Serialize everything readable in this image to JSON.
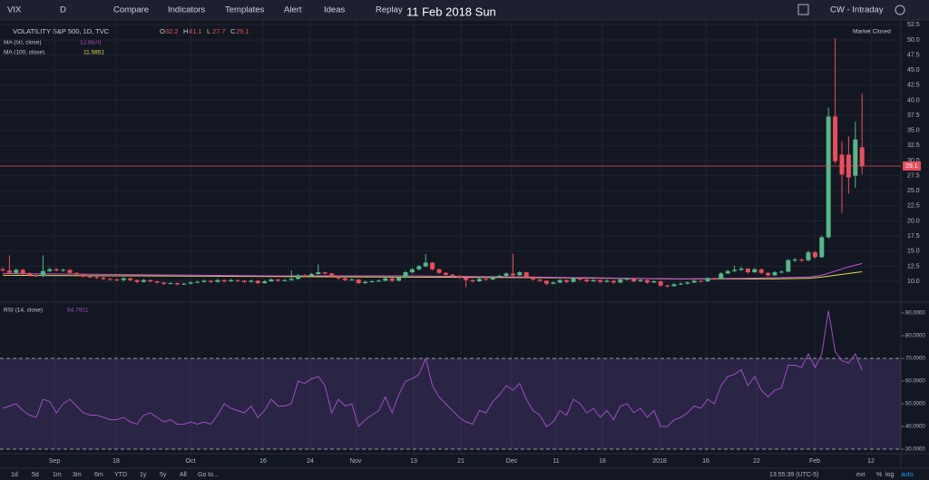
{
  "toolbar": {
    "symbol": "VIX",
    "interval": "D",
    "buttons": [
      "Compare",
      "Indicators",
      "Templates",
      "Alert",
      "Ideas",
      "Replay"
    ],
    "date": "11 Feb 2018 Sun",
    "layout": "CW - Intraday"
  },
  "chart": {
    "type": "candlestick",
    "title": "VOLATILITY S&P 500, 1D, TVC",
    "status": "Market Closed",
    "ohlc": [
      {
        "label": "O",
        "value": "32.2"
      },
      {
        "label": "H",
        "value": "41.1"
      },
      {
        "label": "L",
        "value": "27.7"
      },
      {
        "label": "C",
        "value": "29.1"
      }
    ],
    "ylim": [
      7,
      53
    ],
    "yticks": [
      {
        "value": 10,
        "label": "10.0"
      },
      {
        "value": 12.5,
        "label": "12.5"
      },
      {
        "value": 15,
        "label": "15.0"
      },
      {
        "value": 17.5,
        "label": "17.5"
      },
      {
        "value": 20,
        "label": "20.0"
      },
      {
        "value": 22.5,
        "label": "22.5"
      },
      {
        "value": 25,
        "label": "25.0"
      },
      {
        "value": 27.5,
        "label": "27.5"
      },
      {
        "value": 30,
        "label": "30.0"
      },
      {
        "value": 32.5,
        "label": "32.5"
      },
      {
        "value": 35,
        "label": "35.0"
      },
      {
        "value": 37.5,
        "label": "37.5"
      },
      {
        "value": 40,
        "label": "40.0"
      },
      {
        "value": 42.5,
        "label": "42.5"
      },
      {
        "value": 45,
        "label": "45.0"
      },
      {
        "value": 47.5,
        "label": "47.5"
      },
      {
        "value": 50,
        "label": "50.0"
      },
      {
        "value": 52.5,
        "label": "52.5"
      }
    ],
    "last": {
      "value": 29.1,
      "label": "29.1"
    },
    "colors": {
      "up": "#53b987",
      "down": "#eb4d5c"
    },
    "candles": [
      [
        12.0,
        12.3,
        11.6,
        11.8
      ],
      [
        11.8,
        14.3,
        11.2,
        11.4
      ],
      [
        11.4,
        12.1,
        11.2,
        11.9
      ],
      [
        11.9,
        12.1,
        11.1,
        11.3
      ],
      [
        11.3,
        11.5,
        10.8,
        11.0
      ],
      [
        11.0,
        11.2,
        10.7,
        10.9
      ],
      [
        10.9,
        14.3,
        10.7,
        11.7
      ],
      [
        11.7,
        12.3,
        11.5,
        12.0
      ],
      [
        12.0,
        12.2,
        11.6,
        11.8
      ],
      [
        11.8,
        12.1,
        11.6,
        11.9
      ],
      [
        11.9,
        12.0,
        11.2,
        11.4
      ],
      [
        11.4,
        11.5,
        11.0,
        11.2
      ],
      [
        11.2,
        11.3,
        10.6,
        10.8
      ],
      [
        10.8,
        11.0,
        10.5,
        10.7
      ],
      [
        10.7,
        10.9,
        10.4,
        10.6
      ],
      [
        10.6,
        10.8,
        10.2,
        10.4
      ],
      [
        10.4,
        10.6,
        10.1,
        10.3
      ],
      [
        10.3,
        10.5,
        10.0,
        10.2
      ],
      [
        10.2,
        10.7,
        10.0,
        10.5
      ],
      [
        10.5,
        10.6,
        10.0,
        10.2
      ],
      [
        10.2,
        10.3,
        9.7,
        9.9
      ],
      [
        9.9,
        10.4,
        9.8,
        10.2
      ],
      [
        10.2,
        10.3,
        9.8,
        10.0
      ],
      [
        10.0,
        10.1,
        9.6,
        9.8
      ],
      [
        9.8,
        9.9,
        9.4,
        9.6
      ],
      [
        9.6,
        9.9,
        9.5,
        9.7
      ],
      [
        9.7,
        9.8,
        9.3,
        9.5
      ],
      [
        9.5,
        9.8,
        9.4,
        9.6
      ],
      [
        9.6,
        10.0,
        9.5,
        9.8
      ],
      [
        9.8,
        10.1,
        9.7,
        9.9
      ],
      [
        9.9,
        10.3,
        9.8,
        10.1
      ],
      [
        10.1,
        10.2,
        9.7,
        9.9
      ],
      [
        9.9,
        10.4,
        9.8,
        10.2
      ],
      [
        10.2,
        10.3,
        9.8,
        10.0
      ],
      [
        10.0,
        10.4,
        9.9,
        10.2
      ],
      [
        10.2,
        10.3,
        9.9,
        10.1
      ],
      [
        10.1,
        10.2,
        9.7,
        9.9
      ],
      [
        9.9,
        10.3,
        9.8,
        10.1
      ],
      [
        10.1,
        10.2,
        9.5,
        9.7
      ],
      [
        9.7,
        10.2,
        9.6,
        10.0
      ],
      [
        10.0,
        10.5,
        9.9,
        10.3
      ],
      [
        10.3,
        10.4,
        9.9,
        10.1
      ],
      [
        10.1,
        10.4,
        10.0,
        10.2
      ],
      [
        10.2,
        11.8,
        10.1,
        10.4
      ],
      [
        10.4,
        11.2,
        10.3,
        11.0
      ],
      [
        11.0,
        11.2,
        10.7,
        10.9
      ],
      [
        10.9,
        11.4,
        10.8,
        11.2
      ],
      [
        11.2,
        12.8,
        11.1,
        11.5
      ],
      [
        11.5,
        11.6,
        11.1,
        11.3
      ],
      [
        11.3,
        11.4,
        10.6,
        10.8
      ],
      [
        10.8,
        10.9,
        10.3,
        10.5
      ],
      [
        10.5,
        10.6,
        10.0,
        10.2
      ],
      [
        10.2,
        10.5,
        10.1,
        10.3
      ],
      [
        10.3,
        10.4,
        9.5,
        9.7
      ],
      [
        9.7,
        10.1,
        9.6,
        9.9
      ],
      [
        9.9,
        10.2,
        9.8,
        10.0
      ],
      [
        10.0,
        10.3,
        9.9,
        10.1
      ],
      [
        10.1,
        10.7,
        10.0,
        10.5
      ],
      [
        10.5,
        10.6,
        9.9,
        10.1
      ],
      [
        10.1,
        10.8,
        10.0,
        10.6
      ],
      [
        10.6,
        11.7,
        10.5,
        11.5
      ],
      [
        11.5,
        12.2,
        11.3,
        12.0
      ],
      [
        12.0,
        12.7,
        11.8,
        12.5
      ],
      [
        12.5,
        14.5,
        12.3,
        13.1
      ],
      [
        13.1,
        13.2,
        11.8,
        12.0
      ],
      [
        12.0,
        12.1,
        11.2,
        11.4
      ],
      [
        11.4,
        11.5,
        10.9,
        11.1
      ],
      [
        11.1,
        11.2,
        10.7,
        10.9
      ],
      [
        10.9,
        11.0,
        10.4,
        10.6
      ],
      [
        10.6,
        10.7,
        9.0,
        10.2
      ],
      [
        10.2,
        10.3,
        9.8,
        10.0
      ],
      [
        10.0,
        10.6,
        9.9,
        10.4
      ],
      [
        10.4,
        10.5,
        10.1,
        10.3
      ],
      [
        10.3,
        10.9,
        10.2,
        10.7
      ],
      [
        10.7,
        11.1,
        10.6,
        10.9
      ],
      [
        10.9,
        11.5,
        10.8,
        11.3
      ],
      [
        11.3,
        14.6,
        10.8,
        11.0
      ],
      [
        11.0,
        11.7,
        10.9,
        11.5
      ],
      [
        11.5,
        11.6,
        10.5,
        10.7
      ],
      [
        10.7,
        10.8,
        10.1,
        10.3
      ],
      [
        10.3,
        10.4,
        9.9,
        10.1
      ],
      [
        10.1,
        10.2,
        9.4,
        9.6
      ],
      [
        9.6,
        10.0,
        9.5,
        9.8
      ],
      [
        9.8,
        10.4,
        9.7,
        10.2
      ],
      [
        10.2,
        10.3,
        9.7,
        9.9
      ],
      [
        9.9,
        10.7,
        9.8,
        10.5
      ],
      [
        10.5,
        10.6,
        10.1,
        10.3
      ],
      [
        10.3,
        10.4,
        9.8,
        10.0
      ],
      [
        10.0,
        10.4,
        9.9,
        10.2
      ],
      [
        10.2,
        10.3,
        9.7,
        9.9
      ],
      [
        9.9,
        10.3,
        9.8,
        10.1
      ],
      [
        10.1,
        10.2,
        9.6,
        9.8
      ],
      [
        9.8,
        10.5,
        9.7,
        10.3
      ],
      [
        10.3,
        10.6,
        10.2,
        10.4
      ],
      [
        10.4,
        10.5,
        9.8,
        10.0
      ],
      [
        10.0,
        10.4,
        9.9,
        10.2
      ],
      [
        10.2,
        10.3,
        9.6,
        9.8
      ],
      [
        9.8,
        10.2,
        9.7,
        10.0
      ],
      [
        10.0,
        10.1,
        9.1,
        9.3
      ],
      [
        9.3,
        9.5,
        9.0,
        9.2
      ],
      [
        9.2,
        9.7,
        9.1,
        9.5
      ],
      [
        9.5,
        9.8,
        9.4,
        9.6
      ],
      [
        9.6,
        10.0,
        9.5,
        9.8
      ],
      [
        9.8,
        10.3,
        9.7,
        10.1
      ],
      [
        10.1,
        10.2,
        9.8,
        10.0
      ],
      [
        10.0,
        10.7,
        9.9,
        10.5
      ],
      [
        10.5,
        10.6,
        10.2,
        10.4
      ],
      [
        10.4,
        11.5,
        10.3,
        11.3
      ],
      [
        11.3,
        11.9,
        11.2,
        11.7
      ],
      [
        11.7,
        12.6,
        11.5,
        11.9
      ],
      [
        11.9,
        12.4,
        11.7,
        12.1
      ],
      [
        12.1,
        12.2,
        11.3,
        11.5
      ],
      [
        11.5,
        12.2,
        11.4,
        12.0
      ],
      [
        12.0,
        12.1,
        11.2,
        11.4
      ],
      [
        11.4,
        11.5,
        10.8,
        11.0
      ],
      [
        11.0,
        11.7,
        10.9,
        11.5
      ],
      [
        11.5,
        11.8,
        11.3,
        11.6
      ],
      [
        11.6,
        13.7,
        11.5,
        13.5
      ],
      [
        13.5,
        13.9,
        13.2,
        13.6
      ],
      [
        13.6,
        13.8,
        13.2,
        13.5
      ],
      [
        13.5,
        15.1,
        13.3,
        14.8
      ],
      [
        14.8,
        15.0,
        13.8,
        14.0
      ],
      [
        14.0,
        17.6,
        13.9,
        17.3
      ],
      [
        17.3,
        38.8,
        17.1,
        37.3
      ],
      [
        37.3,
        50.3,
        29.5,
        29.9
      ],
      [
        31.0,
        33.2,
        21.3,
        27.7
      ],
      [
        31.0,
        34.0,
        24.5,
        27.2
      ],
      [
        27.5,
        36.4,
        25.5,
        33.5
      ],
      [
        32.2,
        41.1,
        27.7,
        29.1
      ]
    ],
    "ma_index": [
      0,
      20,
      40,
      60,
      80,
      100,
      110,
      115,
      120,
      122,
      124,
      126,
      128
    ],
    "ma50": {
      "name": "MA (50, close)",
      "value": "12.9570",
      "color": "#c64fd8",
      "values": [
        11.3,
        11.1,
        10.9,
        10.9,
        10.7,
        10.4,
        10.5,
        10.6,
        10.7,
        11.0,
        11.7,
        12.4,
        12.96
      ]
    },
    "ma100": {
      "name": "MA (100, close)",
      "value": "11.5851",
      "color": "#e6d84b",
      "values": [
        11.0,
        10.9,
        10.8,
        10.7,
        10.6,
        10.4,
        10.4,
        10.4,
        10.5,
        10.7,
        11.0,
        11.3,
        11.59
      ]
    },
    "time_labels": [
      "Sep",
      "18",
      "Oct",
      "16",
      "24",
      "Nov",
      "13",
      "21",
      "Dec",
      "11",
      "18",
      "2018",
      "16",
      "22",
      "Feb",
      "12"
    ]
  },
  "rsi": {
    "name": "RSI (14, close)",
    "value": "64.7921",
    "color": "#9c4fc0",
    "ylim": [
      28,
      94
    ],
    "yticks": [
      {
        "value": 30,
        "label": "30.0000"
      },
      {
        "value": 40,
        "label": "40.0000"
      },
      {
        "value": 50,
        "label": "50.0000"
      },
      {
        "value": 60,
        "label": "60.0000"
      },
      {
        "value": 70,
        "label": "70.0000"
      },
      {
        "value": 80,
        "label": "80.0000"
      },
      {
        "value": 90,
        "label": "90.0000"
      }
    ],
    "band": [
      30,
      70
    ],
    "values": [
      48,
      49,
      50,
      47,
      45,
      44,
      52,
      51,
      46,
      50,
      52,
      49,
      46,
      45,
      45,
      44,
      43,
      43,
      44,
      42,
      41,
      45,
      46,
      44,
      42,
      43,
      41,
      41,
      42,
      41,
      42,
      41,
      45,
      50,
      48,
      47,
      46,
      49,
      44,
      47,
      52,
      49,
      49,
      50,
      60,
      59,
      61,
      62,
      58,
      46,
      52,
      49,
      50,
      40,
      43,
      45,
      47,
      53,
      46,
      54,
      60,
      61,
      63,
      70,
      58,
      53,
      50,
      47,
      44,
      42,
      41,
      47,
      46,
      51,
      54,
      58,
      56,
      59,
      52,
      47,
      45,
      40,
      42,
      47,
      45,
      52,
      50,
      46,
      48,
      44,
      47,
      43,
      49,
      50,
      46,
      48,
      44,
      47,
      40,
      40,
      43,
      44,
      46,
      49,
      48,
      52,
      50,
      58,
      62,
      63,
      65,
      58,
      62,
      56,
      53,
      56,
      57,
      67,
      67,
      66,
      72,
      66,
      72,
      91,
      73,
      69,
      68,
      72,
      64.8
    ]
  },
  "bottom": {
    "ranges": [
      "1d",
      "5d",
      "1m",
      "3m",
      "6m",
      "YTD",
      "1y",
      "5y",
      "All",
      "Go to..."
    ],
    "time": "13:55:39 (UTC-5)",
    "options": [
      "ext",
      "%",
      "log",
      "auto"
    ]
  }
}
